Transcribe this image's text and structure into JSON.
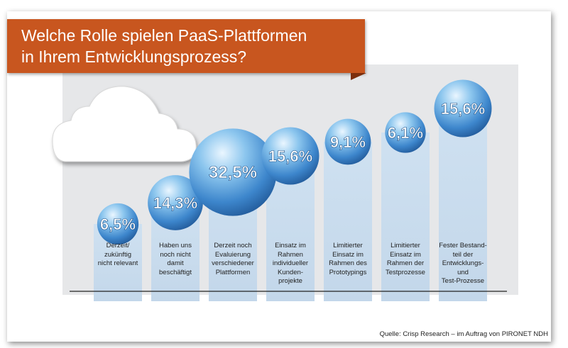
{
  "title_line1": "Welche Rolle spielen PaaS-Plattformen",
  "title_line2": "in Ihrem Entwicklungsprozess?",
  "source": "Quelle: Crisp Research – im Auftrag von PIRONET NDH",
  "colors": {
    "banner": "#c8561f",
    "bar": "#c9dcee",
    "bubble_dark": "#2f6fb5",
    "bubble_light": "#bfe0f7",
    "plot_bg": "#e6e7e9"
  },
  "chart_data": {
    "type": "bar",
    "title": "Welche Rolle spielen PaaS-Plattformen in Ihrem Entwicklungsprozess?",
    "categories": [
      [
        "Derzeit/",
        "zukünftig",
        "nicht relevant"
      ],
      [
        "Haben uns",
        "noch nicht",
        "damit",
        "beschäftigt"
      ],
      [
        "Derzeit noch",
        "Evaluierung",
        "verschiedener",
        "Plattformen"
      ],
      [
        "Einsatz im",
        "Rahmen",
        "individueller",
        "Kunden-",
        "projekte"
      ],
      [
        "Limitierter",
        "Einsatz im",
        "Rahmen des",
        "Prototypings"
      ],
      [
        "Limitierter",
        "Einsatz im",
        "Rahmen der",
        "Testprozesse"
      ],
      [
        "Fester Bestand-",
        "teil der",
        "Entwicklungs-",
        "und",
        "Test-Prozesse"
      ]
    ],
    "values": [
      6.5,
      14.3,
      32.5,
      15.6,
      9.1,
      6.1,
      15.6
    ],
    "value_labels": [
      "6,5%",
      "14,3%",
      "32,5%",
      "15,6%",
      "9,1%",
      "6,1%",
      "15,6%"
    ],
    "xlabel": "",
    "ylabel": "",
    "grid": false,
    "legend": "none"
  }
}
